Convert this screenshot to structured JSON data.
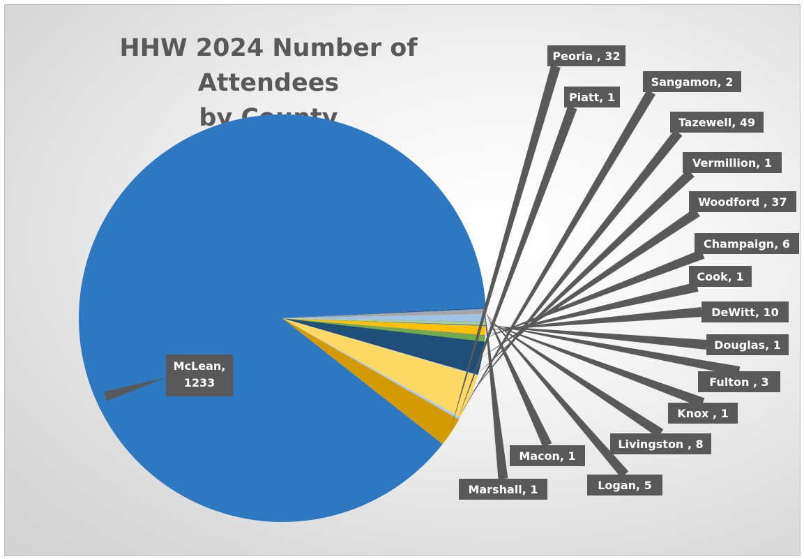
{
  "chart_data": {
    "type": "pie",
    "title": "HHW 2024 Number of Attendees by County",
    "title_lines": [
      "HHW 2024 Number of Attendees",
      "by County"
    ],
    "slices": [
      {
        "name": "McLean",
        "value": 1233,
        "label": [
          "McLean,",
          "1233"
        ],
        "color": "#2e78c2"
      },
      {
        "name": "Peoria",
        "value": 32,
        "label": [
          "Peoria , 32"
        ],
        "color": "#d39b00"
      },
      {
        "name": "Piatt",
        "value": 1,
        "label": [
          "Piatt, 1"
        ],
        "color": "#9dc3e6"
      },
      {
        "name": "Sangamon",
        "value": 2,
        "label": [
          "Sangamon, 2"
        ],
        "color": "#b4c7e7"
      },
      {
        "name": "Tazewell",
        "value": 49,
        "label": [
          "Tazewell, 49"
        ],
        "color": "#ffd966"
      },
      {
        "name": "Vermillion",
        "value": 1,
        "label": [
          "Vermillion, 1"
        ],
        "color": "#c9c9c9"
      },
      {
        "name": "Woodford",
        "value": 37,
        "label": [
          "Woodford , 37"
        ],
        "color": "#1f4e79"
      },
      {
        "name": "Champaign",
        "value": 6,
        "label": [
          "Champaign, 6"
        ],
        "color": "#70ad47"
      },
      {
        "name": "Cook",
        "value": 1,
        "label": [
          "Cook, 1"
        ],
        "color": "#808080"
      },
      {
        "name": "DeWitt",
        "value": 10,
        "label": [
          "DeWitt, 10"
        ],
        "color": "#ffc000"
      },
      {
        "name": "Douglas",
        "value": 1,
        "label": [
          "Douglas, 1"
        ],
        "color": "#4472c4"
      },
      {
        "name": "Fulton",
        "value": 3,
        "label": [
          "Fulton , 3"
        ],
        "color": "#a9d18e"
      },
      {
        "name": "Knox",
        "value": 1,
        "label": [
          "Knox , 1"
        ],
        "color": "#8faadc"
      },
      {
        "name": "Livingston",
        "value": 8,
        "label": [
          "Livingston , 8"
        ],
        "color": "#9dc3e6"
      },
      {
        "name": "Logan",
        "value": 5,
        "label": [
          "Logan, 5"
        ],
        "color": "#a5a5a5"
      },
      {
        "name": "Macon",
        "value": 1,
        "label": [
          "Macon, 1"
        ],
        "color": "#5b9bd5"
      },
      {
        "name": "Marshall",
        "value": 1,
        "label": [
          "Marshall, 1"
        ],
        "color": "#264478"
      }
    ],
    "start_angle_deg": 3,
    "direction": "counterclockwise",
    "label_style": {
      "box_color": "#595959",
      "text_color": "#ffffff",
      "leader_color": "#595959"
    }
  }
}
